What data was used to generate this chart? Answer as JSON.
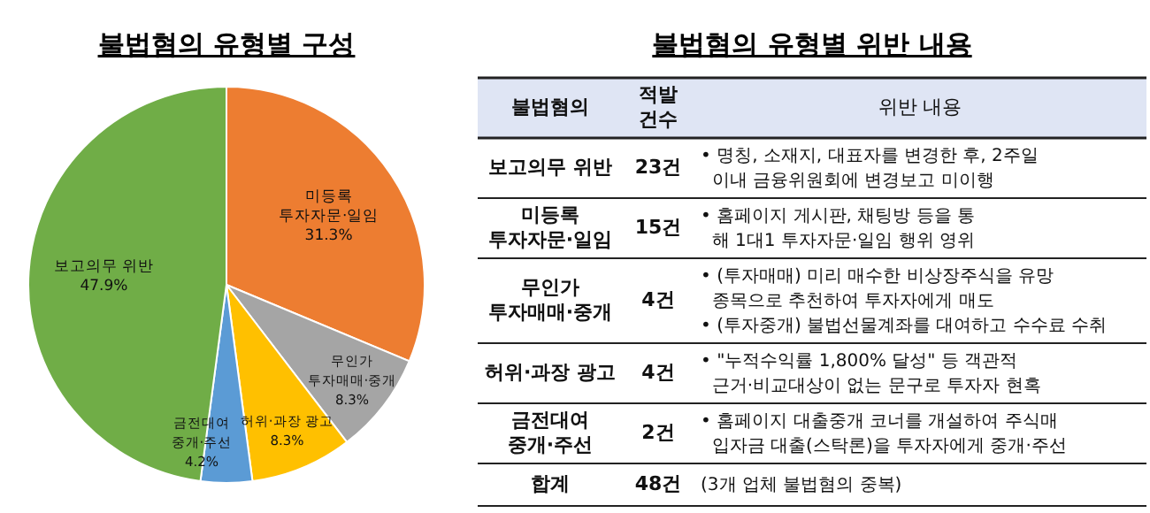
{
  "chart_data": [
    {
      "type": "pie",
      "title": "불법혐의 유형별 구성",
      "categories": [
        "미등록\n투자자문·일임",
        "무인가\n투자매매·중개",
        "허위·과장 광고",
        "금전대여\n중개·주선",
        "보고의무 위반"
      ],
      "values": [
        31.3,
        8.3,
        8.3,
        4.2,
        47.9
      ],
      "value_labels": [
        "31.3%",
        "8.3%",
        "8.3%",
        "4.2%",
        "47.9%"
      ],
      "colors": [
        "#ed7d31",
        "#a5a5a5",
        "#ffc000",
        "#5b9bd5",
        "#70ad47"
      ]
    },
    {
      "type": "other",
      "title": "불법혐의 유형별 위반 내용",
      "annotations": [
        "불법혐의",
        "적발\n건수",
        "위반 내용",
        "보고의무 위반",
        "23건",
        "• 명칭, 소재지, 대표자를 변경한 후, 2주일\n  이내 금융위원회에 변경보고 미이행",
        "미등록\n투자자문·일임",
        "15건",
        "• 홈페이지 게시판, 채팅방 등을 통\n  해 1대1 투자자문·일임 행위 영위",
        "무인가\n투자매매·중개",
        "4건",
        "• (투자매매) 미리 매수한 비상장주식을 유망\n  종목으로 추천하여 투자자에게 매도\n• (투자중개) 불법선물계좌를 대여하고 수수료 수취",
        "허위·과장 광고",
        "4건",
        "• \"누적수익률 1,800% 달성\" 등 객관적\n  근거·비교대상이 없는 문구로 투자자 현혹",
        "금전대여\n중개·주선",
        "2건",
        "• 홈페이지 대출중개 코너를 개설하여 주식매\n  입자금 대출(스탁론)을 투자자에게 중개·주선",
        "합계",
        "48건",
        "(3개 업체 불법혐의 중복)"
      ]
    }
  ]
}
